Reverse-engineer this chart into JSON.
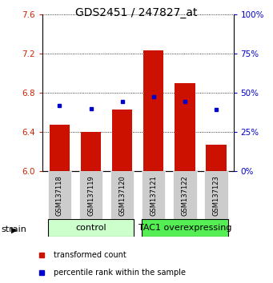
{
  "title": "GDS2451 / 247827_at",
  "samples": [
    "GSM137118",
    "GSM137119",
    "GSM137120",
    "GSM137121",
    "GSM137122",
    "GSM137123"
  ],
  "red_values": [
    6.47,
    6.4,
    6.63,
    7.23,
    6.9,
    6.27
  ],
  "blue_values": [
    6.67,
    6.64,
    6.71,
    6.76,
    6.71,
    6.63
  ],
  "ymin": 6.0,
  "ymax": 7.6,
  "yticks": [
    6.0,
    6.4,
    6.8,
    7.2,
    7.6
  ],
  "right_ytick_pcts": [
    0,
    25,
    50,
    75,
    100
  ],
  "bar_color": "#cc1100",
  "dot_color": "#0000cc",
  "bar_bottom": 6.0,
  "left_tick_color": "#cc2200",
  "right_tick_color": "#0000cc",
  "sample_box_color": "#cccccc",
  "ctrl_color": "#ccffcc",
  "tac1_color": "#55ee55",
  "title_fontsize": 10,
  "tick_fontsize": 7.5,
  "sample_fontsize": 6,
  "group_fontsize": 8,
  "legend_fontsize": 7
}
